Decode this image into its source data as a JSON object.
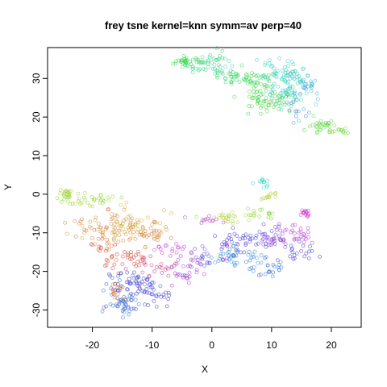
{
  "chart_data": {
    "type": "scatter",
    "title": "frey tsne kernel=knn symm=av perp=40",
    "xlabel": "X",
    "ylabel": "Y",
    "xlim": [
      -27.5,
      25
    ],
    "ylim": [
      -34.5,
      38
    ],
    "xticks": [
      -20,
      -10,
      0,
      10,
      20
    ],
    "yticks": [
      -30,
      -20,
      -10,
      0,
      10,
      20,
      30
    ],
    "xtick_labels": [
      "-20",
      "-10",
      "0",
      "10",
      "20"
    ],
    "ytick_labels": [
      "-30",
      "-20",
      "-10",
      "0",
      "10",
      "20",
      "30"
    ],
    "grid": false,
    "legend": "none",
    "marker": "open-circle",
    "clusters": [
      {
        "cx": -4,
        "cy": 34.5,
        "sx": 1.2,
        "sy": 0.8,
        "n": 30,
        "hue": 125
      },
      {
        "cx": 0,
        "cy": 33.5,
        "sx": 2.0,
        "sy": 1.5,
        "n": 50,
        "hue": 150
      },
      {
        "cx": 4,
        "cy": 30.5,
        "sx": 2.0,
        "sy": 1.2,
        "n": 35,
        "hue": 135
      },
      {
        "cx": 8,
        "cy": 29,
        "sx": 1.5,
        "sy": 2.0,
        "n": 30,
        "hue": 120
      },
      {
        "cx": 12,
        "cy": 31,
        "sx": 2.2,
        "sy": 2.2,
        "n": 70,
        "hue": 170
      },
      {
        "cx": 13,
        "cy": 26.5,
        "sx": 1.8,
        "sy": 2.0,
        "n": 40,
        "hue": 185
      },
      {
        "cx": 10,
        "cy": 24,
        "sx": 2.0,
        "sy": 1.5,
        "n": 50,
        "hue": 118
      },
      {
        "cx": 16,
        "cy": 28.5,
        "sx": 1.0,
        "sy": 1.0,
        "n": 20,
        "hue": 195
      },
      {
        "cx": 14.5,
        "cy": 22,
        "sx": 1.0,
        "sy": 1.5,
        "n": 15,
        "hue": 205
      },
      {
        "cx": 18,
        "cy": 17.5,
        "sx": 1.0,
        "sy": 0.8,
        "n": 25,
        "hue": 112
      },
      {
        "cx": 21,
        "cy": 16.5,
        "sx": 1.2,
        "sy": 0.6,
        "n": 15,
        "hue": 100
      },
      {
        "cx": -24.5,
        "cy": 0,
        "sx": 0.8,
        "sy": 0.8,
        "n": 20,
        "hue": 78
      },
      {
        "cx": -20,
        "cy": -1.5,
        "sx": 3.0,
        "sy": 0.6,
        "n": 35,
        "hue": 82
      },
      {
        "cx": -18,
        "cy": -9,
        "sx": 3.0,
        "sy": 2.5,
        "n": 70,
        "hue": 30
      },
      {
        "cx": -13,
        "cy": -8.5,
        "sx": 2.0,
        "sy": 2.2,
        "n": 50,
        "hue": 42
      },
      {
        "cx": -10,
        "cy": -10,
        "sx": 1.5,
        "sy": 1.5,
        "n": 20,
        "hue": 22
      },
      {
        "cx": -17,
        "cy": -15,
        "sx": 2.0,
        "sy": 2.0,
        "n": 30,
        "hue": 10
      },
      {
        "cx": -12.5,
        "cy": -17,
        "sx": 1.0,
        "sy": 1.0,
        "n": 18,
        "hue": 2
      },
      {
        "cx": -10,
        "cy": -19,
        "sx": 2.0,
        "sy": 1.5,
        "n": 20,
        "hue": 330
      },
      {
        "cx": -13,
        "cy": -23.5,
        "sx": 2.5,
        "sy": 2.0,
        "n": 70,
        "hue": 235
      },
      {
        "cx": -15,
        "cy": -28.5,
        "sx": 1.5,
        "sy": 1.5,
        "n": 40,
        "hue": 222
      },
      {
        "cx": -16,
        "cy": -25,
        "sx": 1.0,
        "sy": 1.5,
        "n": 15,
        "hue": 20
      },
      {
        "cx": -9,
        "cy": -26.5,
        "sx": 1.5,
        "sy": 1.0,
        "n": 15,
        "hue": 240
      },
      {
        "cx": 8.5,
        "cy": 3,
        "sx": 0.6,
        "sy": 0.6,
        "n": 12,
        "hue": 175
      },
      {
        "cx": 10,
        "cy": -0.5,
        "sx": 0.8,
        "sy": 0.6,
        "n": 12,
        "hue": 70
      },
      {
        "cx": 3,
        "cy": -6,
        "sx": 2.0,
        "sy": 0.8,
        "n": 25,
        "hue": 78
      },
      {
        "cx": 8.5,
        "cy": -5,
        "sx": 1.5,
        "sy": 0.8,
        "n": 15,
        "hue": 88
      },
      {
        "cx": 15.5,
        "cy": -4.8,
        "sx": 0.4,
        "sy": 0.4,
        "n": 15,
        "hue": 300
      },
      {
        "cx": 13.5,
        "cy": -10.5,
        "sx": 2.0,
        "sy": 1.5,
        "n": 35,
        "hue": 285
      },
      {
        "cx": 10,
        "cy": -11,
        "sx": 1.5,
        "sy": 1.5,
        "n": 25,
        "hue": 265
      },
      {
        "cx": 5,
        "cy": -12,
        "sx": 2.5,
        "sy": 1.5,
        "n": 40,
        "hue": 250
      },
      {
        "cx": 4,
        "cy": -16,
        "sx": 2.5,
        "sy": 1.5,
        "n": 50,
        "hue": 210
      },
      {
        "cx": 9.5,
        "cy": -19,
        "sx": 1.5,
        "sy": 1.2,
        "n": 25,
        "hue": 215
      },
      {
        "cx": 14.5,
        "cy": -14.5,
        "sx": 1.5,
        "sy": 1.5,
        "n": 20,
        "hue": 242
      },
      {
        "cx": -2,
        "cy": -17,
        "sx": 2.5,
        "sy": 1.5,
        "n": 30,
        "hue": 270
      },
      {
        "cx": -5,
        "cy": -21,
        "sx": 1.5,
        "sy": 1.0,
        "n": 20,
        "hue": 280
      },
      {
        "cx": -7,
        "cy": -14,
        "sx": 1.5,
        "sy": 1.0,
        "n": 15,
        "hue": 300
      },
      {
        "cx": -1,
        "cy": -7,
        "sx": 1.5,
        "sy": 1.0,
        "n": 12,
        "hue": 290
      }
    ]
  }
}
